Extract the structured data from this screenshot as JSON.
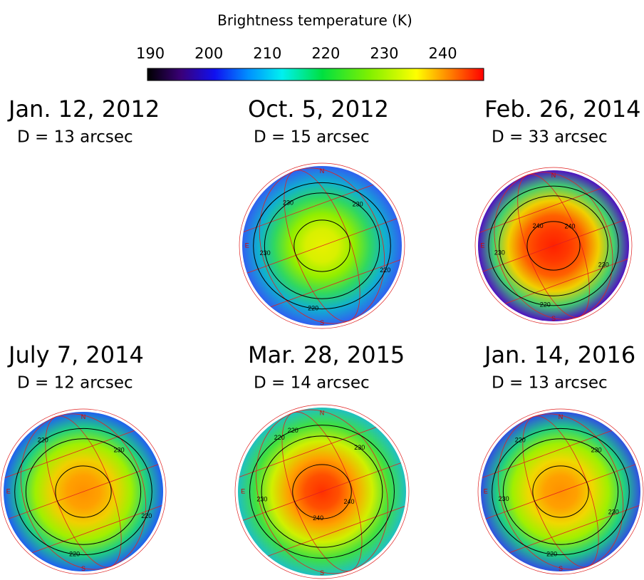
{
  "colorbar": {
    "title": "Brightness temperature (K)",
    "ticks": [
      190,
      200,
      210,
      220,
      230,
      240
    ],
    "range": [
      189.5,
      247
    ]
  },
  "panels": [
    {
      "date": "Jan. 12, 2012",
      "diameter": "D = 13 arcsec",
      "map_labels": []
    },
    {
      "date": "Oct. 5, 2012",
      "diameter": "D = 15 arcsec",
      "map_labels": [
        "N",
        "E",
        "S",
        "230",
        "230",
        "220",
        "220",
        "230"
      ]
    },
    {
      "date": "Feb. 26, 2014",
      "diameter": "D = 33 arcsec",
      "map_labels": [
        "N",
        "E",
        "S",
        "240",
        "240",
        "230",
        "220",
        "230"
      ]
    },
    {
      "date": "July 7, 2014",
      "diameter": "D = 12 arcsec",
      "map_labels": [
        "N",
        "E",
        "S",
        "220",
        "230",
        "220",
        "220"
      ]
    },
    {
      "date": "Mar. 28, 2015",
      "diameter": "D = 14 arcsec",
      "map_labels": [
        "N",
        "E",
        "S",
        "220",
        "230",
        "240",
        "240",
        "230",
        "220"
      ]
    },
    {
      "date": "Jan. 14, 2016",
      "diameter": "D = 13 arcsec",
      "map_labels": [
        "N",
        "E",
        "S",
        "220",
        "230",
        "230",
        "220",
        "230"
      ]
    }
  ]
}
